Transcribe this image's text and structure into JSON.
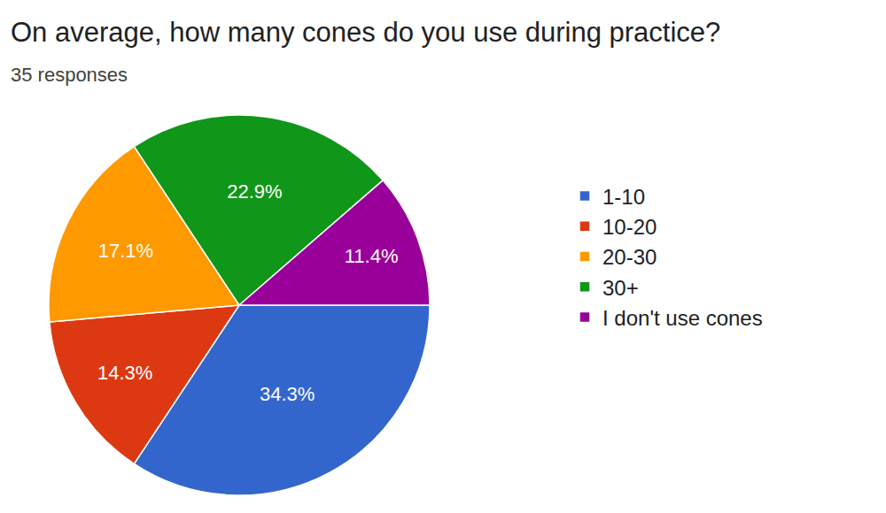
{
  "chart_data": {
    "type": "pie",
    "title": "On average, how many cones do you use during practice?",
    "subtitle": "35 responses",
    "categories": [
      "1-10",
      "10-20",
      "20-30",
      "30+",
      "I don't use cones"
    ],
    "values": [
      34.3,
      14.3,
      17.1,
      22.9,
      11.4
    ],
    "value_labels": [
      "34.3%",
      "14.3%",
      "17.1%",
      "22.9%",
      "11.4%"
    ],
    "colors": [
      "#3366cc",
      "#dc3912",
      "#ff9900",
      "#109618",
      "#990099"
    ],
    "data_labels": true,
    "legend": "right"
  }
}
